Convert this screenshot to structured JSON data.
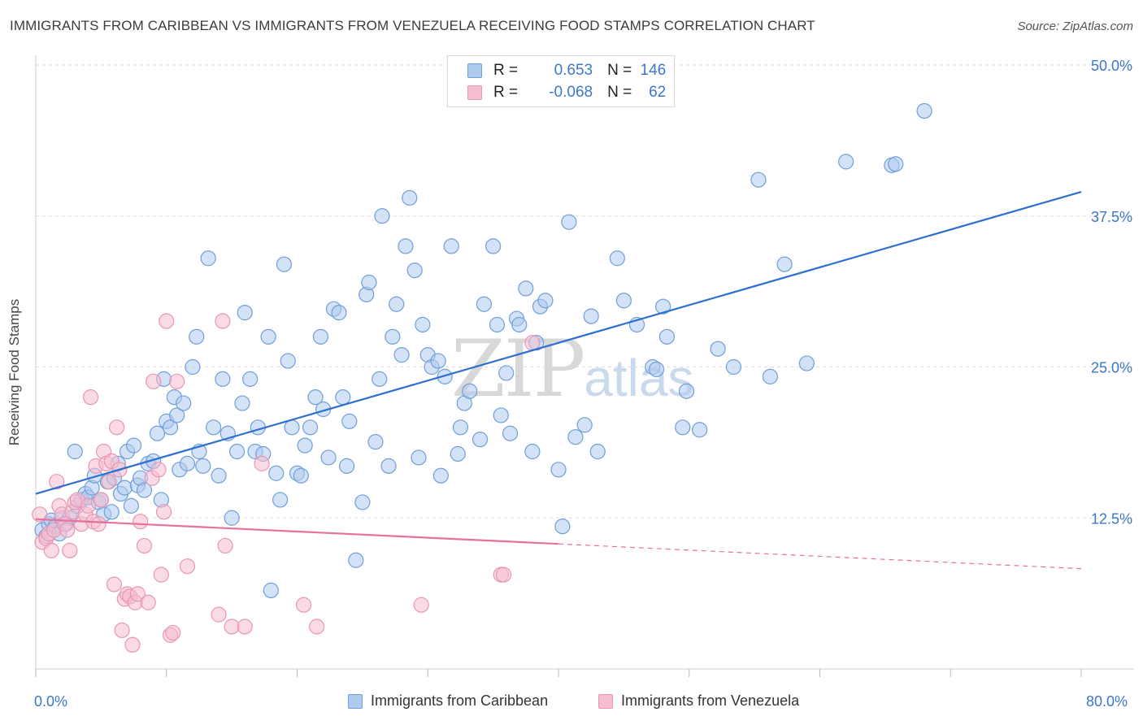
{
  "title": "IMMIGRANTS FROM CARIBBEAN VS IMMIGRANTS FROM VENEZUELA RECEIVING FOOD STAMPS CORRELATION CHART",
  "source": "Source: ZipAtlas.com",
  "watermark": {
    "zip": "ZIP",
    "atlas": "atlas"
  },
  "legend_top": {
    "rows": [
      {
        "r_label": "R =",
        "r_value": "0.653",
        "n_label": "N =",
        "n_value": "146"
      },
      {
        "r_label": "R =",
        "r_value": "-0.068",
        "n_label": "N =",
        "n_value": "62"
      }
    ]
  },
  "legend_bottom": [
    "Immigrants from Caribbean",
    "Immigrants from Venezuela"
  ],
  "colors": {
    "blue_fill": "#aecbef",
    "blue_stroke": "#6f9fd8",
    "blue_line": "#2f6fcd",
    "pink_fill": "#f6bdd0",
    "pink_stroke": "#e896b3",
    "pink_line": "#e8719b",
    "grid": "#dddddd",
    "tick_text": "#3b78c9"
  },
  "chart_data": {
    "type": "scatter",
    "title": "IMMIGRANTS FROM CARIBBEAN VS IMMIGRANTS FROM VENEZUELA RECEIVING FOOD STAMPS CORRELATION CHART",
    "xlabel": "",
    "ylabel": "Receiving Food Stamps",
    "xlim": [
      0,
      80
    ],
    "ylim": [
      0,
      50
    ],
    "x_tick_labels": [
      "0.0%",
      "80.0%"
    ],
    "y_ticks": [
      12.5,
      25.0,
      37.5,
      50.0
    ],
    "y_tick_labels": [
      "12.5%",
      "25.0%",
      "37.5%",
      "50.0%"
    ],
    "grid": true,
    "legend_position": "top-center",
    "series": [
      {
        "name": "Immigrants from Caribbean",
        "r": 0.653,
        "n": 146,
        "trend": {
          "x": [
            0,
            80
          ],
          "y": [
            14.5,
            39.5
          ],
          "dashed_from": null
        },
        "points": [
          [
            0.5,
            11.5
          ],
          [
            0.8,
            11.0
          ],
          [
            1.0,
            12.0
          ],
          [
            1.2,
            12.3
          ],
          [
            1.5,
            11.8
          ],
          [
            1.8,
            11.2
          ],
          [
            2.0,
            12.5
          ],
          [
            2.3,
            12.0
          ],
          [
            2.6,
            12.5
          ],
          [
            3.0,
            18.0
          ],
          [
            3.2,
            13.5
          ],
          [
            3.5,
            14.0
          ],
          [
            3.8,
            14.5
          ],
          [
            4.0,
            14.2
          ],
          [
            4.3,
            15.0
          ],
          [
            4.5,
            16.0
          ],
          [
            4.8,
            13.8
          ],
          [
            5.0,
            14.0
          ],
          [
            5.2,
            12.8
          ],
          [
            5.5,
            15.5
          ],
          [
            5.8,
            13.0
          ],
          [
            6.0,
            15.8
          ],
          [
            6.3,
            17.0
          ],
          [
            6.5,
            14.5
          ],
          [
            6.8,
            15.0
          ],
          [
            7.0,
            18.0
          ],
          [
            7.3,
            13.5
          ],
          [
            7.5,
            18.5
          ],
          [
            7.8,
            15.2
          ],
          [
            8.0,
            15.8
          ],
          [
            8.3,
            14.8
          ],
          [
            8.6,
            17.0
          ],
          [
            9.0,
            17.2
          ],
          [
            9.3,
            19.5
          ],
          [
            9.6,
            14.0
          ],
          [
            9.8,
            24.0
          ],
          [
            10.0,
            20.5
          ],
          [
            10.3,
            20.0
          ],
          [
            10.6,
            22.5
          ],
          [
            10.8,
            21.0
          ],
          [
            11.0,
            16.5
          ],
          [
            11.3,
            22.0
          ],
          [
            11.6,
            17.0
          ],
          [
            12.0,
            25.0
          ],
          [
            12.3,
            27.5
          ],
          [
            12.5,
            18.0
          ],
          [
            12.8,
            16.8
          ],
          [
            13.2,
            34.0
          ],
          [
            13.6,
            20.0
          ],
          [
            14.0,
            16.0
          ],
          [
            14.3,
            24.0
          ],
          [
            14.7,
            19.5
          ],
          [
            15.0,
            12.5
          ],
          [
            15.4,
            18.0
          ],
          [
            15.8,
            22.0
          ],
          [
            16.0,
            29.5
          ],
          [
            16.4,
            24.0
          ],
          [
            16.8,
            18.0
          ],
          [
            17.0,
            20.0
          ],
          [
            17.4,
            17.8
          ],
          [
            17.8,
            27.5
          ],
          [
            18.0,
            6.5
          ],
          [
            18.4,
            16.2
          ],
          [
            18.7,
            14.0
          ],
          [
            19.0,
            33.5
          ],
          [
            19.3,
            25.5
          ],
          [
            19.6,
            20.0
          ],
          [
            20.0,
            16.2
          ],
          [
            20.3,
            16.0
          ],
          [
            20.6,
            18.5
          ],
          [
            21.0,
            20.0
          ],
          [
            21.4,
            22.5
          ],
          [
            21.8,
            27.5
          ],
          [
            22.0,
            21.5
          ],
          [
            22.4,
            17.5
          ],
          [
            22.8,
            29.8
          ],
          [
            23.2,
            29.5
          ],
          [
            23.5,
            22.5
          ],
          [
            23.8,
            16.8
          ],
          [
            24.0,
            20.5
          ],
          [
            24.5,
            9.0
          ],
          [
            25.0,
            13.8
          ],
          [
            25.3,
            31.0
          ],
          [
            25.5,
            32.0
          ],
          [
            26.0,
            18.8
          ],
          [
            26.3,
            24.0
          ],
          [
            26.5,
            37.5
          ],
          [
            27.0,
            16.8
          ],
          [
            27.3,
            27.5
          ],
          [
            27.6,
            30.2
          ],
          [
            28.0,
            26.0
          ],
          [
            28.3,
            35.0
          ],
          [
            28.6,
            39.0
          ],
          [
            29.0,
            33.0
          ],
          [
            29.3,
            17.5
          ],
          [
            29.6,
            28.5
          ],
          [
            30.0,
            26.0
          ],
          [
            30.3,
            25.0
          ],
          [
            30.8,
            25.5
          ],
          [
            31.0,
            16.0
          ],
          [
            31.3,
            24.2
          ],
          [
            31.8,
            35.0
          ],
          [
            32.3,
            17.8
          ],
          [
            32.5,
            20.0
          ],
          [
            32.8,
            22.0
          ],
          [
            33.2,
            23.0
          ],
          [
            34.0,
            19.0
          ],
          [
            34.3,
            30.2
          ],
          [
            35.0,
            35.0
          ],
          [
            35.3,
            28.5
          ],
          [
            35.6,
            21.0
          ],
          [
            36.0,
            24.5
          ],
          [
            36.3,
            19.5
          ],
          [
            36.8,
            29.0
          ],
          [
            37.0,
            28.5
          ],
          [
            37.5,
            31.5
          ],
          [
            38.0,
            18.0
          ],
          [
            38.3,
            27.0
          ],
          [
            38.6,
            30.0
          ],
          [
            39.0,
            30.5
          ],
          [
            40.0,
            16.5
          ],
          [
            40.3,
            11.8
          ],
          [
            40.8,
            37.0
          ],
          [
            41.3,
            19.2
          ],
          [
            42.0,
            20.2
          ],
          [
            42.5,
            29.2
          ],
          [
            43.0,
            18.0
          ],
          [
            44.5,
            34.0
          ],
          [
            45.0,
            30.5
          ],
          [
            46.0,
            28.5
          ],
          [
            47.2,
            25.0
          ],
          [
            47.5,
            24.8
          ],
          [
            48.0,
            30.0
          ],
          [
            48.3,
            27.5
          ],
          [
            49.5,
            20.0
          ],
          [
            49.8,
            23.0
          ],
          [
            50.8,
            19.8
          ],
          [
            52.2,
            26.5
          ],
          [
            53.4,
            25.0
          ],
          [
            55.3,
            40.5
          ],
          [
            56.2,
            24.2
          ],
          [
            57.3,
            33.5
          ],
          [
            59.0,
            25.3
          ],
          [
            62.0,
            42.0
          ],
          [
            65.5,
            41.7
          ],
          [
            65.8,
            41.8
          ],
          [
            68.0,
            46.2
          ]
        ]
      },
      {
        "name": "Immigrants from Venezuela",
        "r": -0.068,
        "n": 62,
        "trend": {
          "x": [
            0,
            80
          ],
          "y": [
            12.4,
            8.3
          ],
          "dashed_from": 40
        },
        "points": [
          [
            0.3,
            12.8
          ],
          [
            0.5,
            10.5
          ],
          [
            0.8,
            10.8
          ],
          [
            1.0,
            11.2
          ],
          [
            1.2,
            9.8
          ],
          [
            1.4,
            11.5
          ],
          [
            1.6,
            15.5
          ],
          [
            1.8,
            13.5
          ],
          [
            2.0,
            12.8
          ],
          [
            2.2,
            12.0
          ],
          [
            2.4,
            11.5
          ],
          [
            2.6,
            9.8
          ],
          [
            2.8,
            13.0
          ],
          [
            3.0,
            13.8
          ],
          [
            3.2,
            14.0
          ],
          [
            3.5,
            12.0
          ],
          [
            3.8,
            12.8
          ],
          [
            4.0,
            13.5
          ],
          [
            4.2,
            22.5
          ],
          [
            4.4,
            12.2
          ],
          [
            4.6,
            16.8
          ],
          [
            4.8,
            12.0
          ],
          [
            5.0,
            14.0
          ],
          [
            5.2,
            18.0
          ],
          [
            5.4,
            17.0
          ],
          [
            5.6,
            15.5
          ],
          [
            5.8,
            17.2
          ],
          [
            6.0,
            7.0
          ],
          [
            6.2,
            20.0
          ],
          [
            6.4,
            16.5
          ],
          [
            6.6,
            3.2
          ],
          [
            6.8,
            5.8
          ],
          [
            7.0,
            6.2
          ],
          [
            7.2,
            6.0
          ],
          [
            7.4,
            2.0
          ],
          [
            7.6,
            5.5
          ],
          [
            7.8,
            6.2
          ],
          [
            8.0,
            12.2
          ],
          [
            8.3,
            10.2
          ],
          [
            8.6,
            5.5
          ],
          [
            8.9,
            15.8
          ],
          [
            9.0,
            23.8
          ],
          [
            9.4,
            16.5
          ],
          [
            9.6,
            7.8
          ],
          [
            9.8,
            13.0
          ],
          [
            10.0,
            28.8
          ],
          [
            10.3,
            2.8
          ],
          [
            10.5,
            3.0
          ],
          [
            10.8,
            23.8
          ],
          [
            11.6,
            8.5
          ],
          [
            14.0,
            4.5
          ],
          [
            14.3,
            28.8
          ],
          [
            14.5,
            10.2
          ],
          [
            15.0,
            3.5
          ],
          [
            16.0,
            3.5
          ],
          [
            17.3,
            17.0
          ],
          [
            20.5,
            5.3
          ],
          [
            21.5,
            3.5
          ],
          [
            29.5,
            5.3
          ],
          [
            35.6,
            7.8
          ],
          [
            35.8,
            7.8
          ],
          [
            38.0,
            27.0
          ]
        ]
      }
    ]
  }
}
